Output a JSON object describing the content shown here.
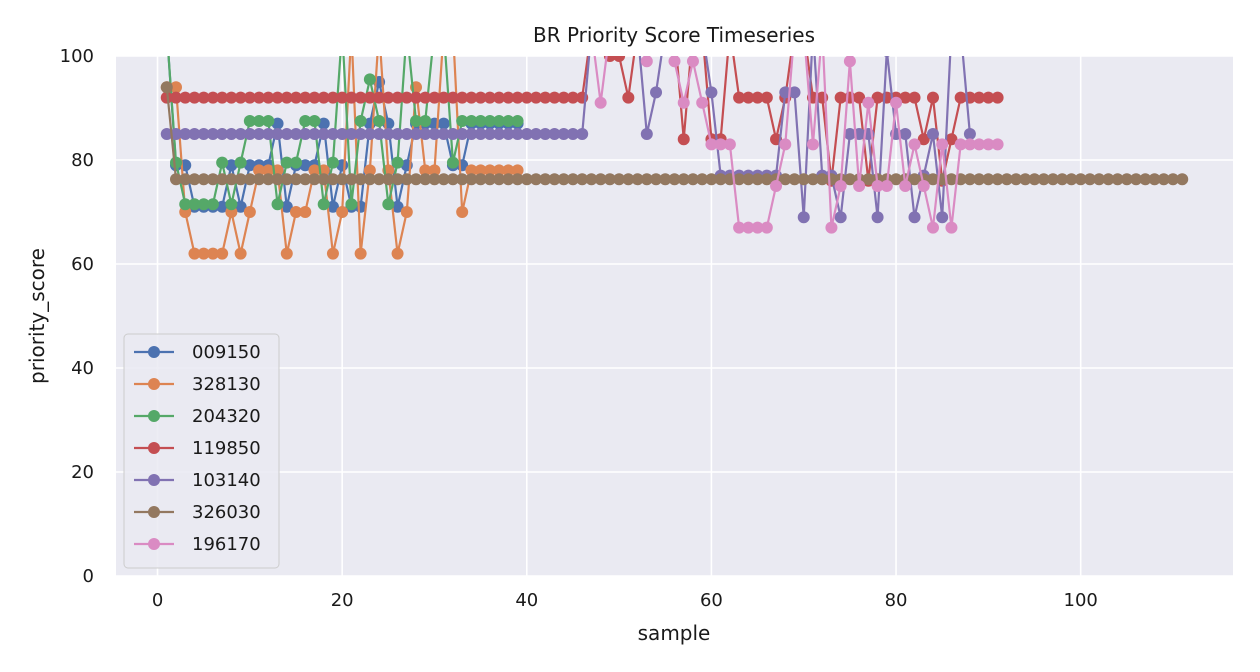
{
  "chart_data": {
    "type": "line",
    "title": "BR Priority Score Timeseries",
    "xlabel": "sample",
    "ylabel": "priority_score",
    "xlim": [
      -4.5,
      116.5
    ],
    "ylim": [
      0,
      100
    ],
    "xticks": [
      0,
      20,
      40,
      60,
      80,
      100
    ],
    "yticks": [
      0,
      20,
      40,
      60,
      80,
      100
    ],
    "grid": true,
    "legend_position": "lower-left",
    "series": [
      {
        "name": "009150",
        "color": "#4c72b0",
        "x": [
          1,
          2,
          3,
          4,
          5,
          6,
          7,
          8,
          9,
          10,
          11,
          12,
          13,
          14,
          15,
          16,
          17,
          18,
          19,
          20,
          21,
          22,
          23,
          24,
          25,
          26,
          27,
          28,
          29,
          30,
          31,
          32,
          33,
          34,
          35,
          36,
          37,
          38,
          39
        ],
        "values": [
          105,
          79,
          79,
          71,
          71,
          71,
          71,
          79,
          71,
          79,
          79,
          79,
          87,
          71,
          79,
          79,
          79,
          87,
          71,
          79,
          71,
          71,
          87,
          95,
          87,
          71,
          79,
          87,
          87,
          87,
          87,
          79,
          79,
          87,
          87,
          87,
          87,
          87,
          87
        ]
      },
      {
        "name": "328130",
        "color": "#dd8452",
        "x": [
          1,
          2,
          3,
          4,
          5,
          6,
          7,
          8,
          9,
          10,
          11,
          12,
          13,
          14,
          15,
          16,
          17,
          18,
          19,
          20,
          21,
          22,
          23,
          24,
          25,
          26,
          27,
          28,
          29,
          30,
          31,
          32,
          33,
          34,
          35,
          36,
          37,
          38,
          39
        ],
        "values": [
          94,
          94,
          70,
          62,
          62,
          62,
          62,
          70,
          62,
          70,
          78,
          78,
          78,
          62,
          70,
          70,
          78,
          78,
          62,
          70,
          105,
          62,
          78,
          105,
          78,
          62,
          70,
          94,
          78,
          78,
          105,
          105,
          70,
          78,
          78,
          78,
          78,
          78,
          78
        ]
      },
      {
        "name": "204320",
        "color": "#55a868",
        "x": [
          1,
          2,
          3,
          4,
          5,
          6,
          7,
          8,
          9,
          10,
          11,
          12,
          13,
          14,
          15,
          16,
          17,
          18,
          19,
          20,
          21,
          22,
          23,
          24,
          25,
          26,
          27,
          28,
          29,
          30,
          31,
          32,
          33,
          34,
          35,
          36,
          37,
          38,
          39
        ],
        "values": [
          105,
          79.5,
          71.5,
          71.5,
          71.5,
          71.5,
          79.5,
          71.5,
          79.5,
          87.5,
          87.5,
          87.5,
          71.5,
          79.5,
          79.5,
          87.5,
          87.5,
          71.5,
          79.5,
          105,
          71.5,
          87.5,
          95.5,
          87.5,
          71.5,
          79.5,
          105,
          87.5,
          87.5,
          105,
          105,
          79.5,
          87.5,
          87.5,
          87.5,
          87.5,
          87.5,
          87.5,
          87.5
        ]
      },
      {
        "name": "119850",
        "color": "#c44e52",
        "x": [
          1,
          2,
          3,
          4,
          5,
          6,
          7,
          8,
          9,
          10,
          11,
          12,
          13,
          14,
          15,
          16,
          17,
          18,
          19,
          20,
          21,
          22,
          23,
          24,
          25,
          26,
          27,
          28,
          29,
          30,
          31,
          32,
          33,
          34,
          35,
          36,
          37,
          38,
          39,
          40,
          41,
          42,
          43,
          44,
          45,
          46,
          47,
          48,
          49,
          50,
          51,
          52,
          53,
          54,
          55,
          56,
          57,
          58,
          59,
          60,
          61,
          62,
          63,
          64,
          65,
          66,
          67,
          68,
          69,
          70,
          71,
          72,
          73,
          74,
          75,
          76,
          77,
          78,
          79,
          80,
          81,
          82,
          83,
          84,
          85,
          86,
          87,
          88,
          89,
          90,
          91
        ],
        "values": [
          92,
          92,
          92,
          92,
          92,
          92,
          92,
          92,
          92,
          92,
          92,
          92,
          92,
          92,
          92,
          92,
          92,
          92,
          92,
          92,
          92,
          92,
          92,
          92,
          92,
          92,
          92,
          92,
          92,
          92,
          92,
          92,
          92,
          92,
          92,
          92,
          92,
          92,
          92,
          92,
          92,
          92,
          92,
          92,
          92,
          92,
          105,
          105,
          100,
          100,
          92,
          105,
          105,
          105,
          105,
          105,
          84,
          105,
          105,
          84,
          84,
          105,
          92,
          92,
          92,
          92,
          84,
          92,
          105,
          105,
          92,
          92,
          76,
          92,
          92,
          92,
          76,
          92,
          92,
          92,
          92,
          92,
          84,
          92,
          76,
          84,
          92,
          92,
          92,
          92,
          92
        ]
      },
      {
        "name": "103140",
        "color": "#8172b2",
        "x": [
          1,
          2,
          3,
          4,
          5,
          6,
          7,
          8,
          9,
          10,
          11,
          12,
          13,
          14,
          15,
          16,
          17,
          18,
          19,
          20,
          21,
          22,
          23,
          24,
          25,
          26,
          27,
          28,
          29,
          30,
          31,
          32,
          33,
          34,
          35,
          36,
          37,
          38,
          39,
          40,
          41,
          42,
          43,
          44,
          45,
          46,
          47,
          48,
          49,
          50,
          51,
          52,
          53,
          54,
          55,
          56,
          57,
          58,
          59,
          60,
          61,
          62,
          63,
          64,
          65,
          66,
          67,
          68,
          69,
          70,
          71,
          72,
          73,
          74,
          75,
          76,
          77,
          78,
          79,
          80,
          81,
          82,
          83,
          84,
          85,
          86,
          87,
          88
        ],
        "values": [
          85,
          85,
          85,
          85,
          85,
          85,
          85,
          85,
          85,
          85,
          85,
          85,
          85,
          85,
          85,
          85,
          85,
          85,
          85,
          85,
          85,
          85,
          85,
          85,
          85,
          85,
          85,
          85,
          85,
          85,
          85,
          85,
          85,
          85,
          85,
          85,
          85,
          85,
          85,
          85,
          85,
          85,
          85,
          85,
          85,
          85,
          105,
          105,
          105,
          105,
          105,
          105,
          85,
          93,
          105,
          105,
          105,
          105,
          105,
          93,
          77,
          77,
          77,
          77,
          77,
          77,
          77,
          93,
          93,
          69,
          105,
          77,
          77,
          69,
          85,
          85,
          85,
          69,
          101,
          85,
          85,
          69,
          77,
          85,
          69,
          105,
          105,
          85
        ]
      },
      {
        "name": "326030",
        "color": "#937860",
        "x": [
          1,
          2,
          3,
          4,
          5,
          6,
          7,
          8,
          9,
          10,
          11,
          12,
          13,
          14,
          15,
          16,
          17,
          18,
          19,
          20,
          21,
          22,
          23,
          24,
          25,
          26,
          27,
          28,
          29,
          30,
          31,
          32,
          33,
          34,
          35,
          36,
          37,
          38,
          39,
          40,
          41,
          42,
          43,
          44,
          45,
          46,
          47,
          48,
          49,
          50,
          51,
          52,
          53,
          54,
          55,
          56,
          57,
          58,
          59,
          60,
          61,
          62,
          63,
          64,
          65,
          66,
          67,
          68,
          69,
          70,
          71,
          72,
          73,
          74,
          75,
          76,
          77,
          78,
          79,
          80,
          81,
          82,
          83,
          84,
          85,
          86,
          87,
          88,
          89,
          90,
          91,
          92,
          93,
          94,
          95,
          96,
          97,
          98,
          99,
          100,
          101,
          102,
          103,
          104,
          105,
          106,
          107,
          108,
          109,
          110,
          111
        ],
        "values": [
          94,
          76.3,
          76.3,
          76.3,
          76.3,
          76.3,
          76.3,
          76.3,
          76.3,
          76.3,
          76.3,
          76.3,
          76.3,
          76.3,
          76.3,
          76.3,
          76.3,
          76.3,
          76.3,
          76.3,
          76.3,
          76.3,
          76.3,
          76.3,
          76.3,
          76.3,
          76.3,
          76.3,
          76.3,
          76.3,
          76.3,
          76.3,
          76.3,
          76.3,
          76.3,
          76.3,
          76.3,
          76.3,
          76.3,
          76.3,
          76.3,
          76.3,
          76.3,
          76.3,
          76.3,
          76.3,
          76.3,
          76.3,
          76.3,
          76.3,
          76.3,
          76.3,
          76.3,
          76.3,
          76.3,
          76.3,
          76.3,
          76.3,
          76.3,
          76.3,
          76.3,
          76.3,
          76.3,
          76.3,
          76.3,
          76.3,
          76.3,
          76.3,
          76.3,
          76.3,
          76.3,
          76.3,
          76.3,
          76.3,
          76.3,
          76.3,
          76.3,
          76.3,
          76.3,
          76.3,
          76.3,
          76.3,
          76.3,
          76.3,
          76.3,
          76.3,
          76.3,
          76.3,
          76.3,
          76.3,
          76.3,
          76.3,
          76.3,
          76.3,
          76.3,
          76.3,
          76.3,
          76.3,
          76.3,
          76.3,
          76.3,
          76.3,
          76.3,
          76.3,
          76.3,
          76.3,
          76.3,
          76.3,
          76.3,
          76.3,
          76.3
        ]
      },
      {
        "name": "196170",
        "color": "#da8bc3",
        "x": [
          47,
          48,
          49,
          50,
          51,
          52,
          53,
          54,
          55,
          56,
          57,
          58,
          59,
          60,
          61,
          62,
          63,
          64,
          65,
          66,
          67,
          68,
          69,
          70,
          71,
          72,
          73,
          74,
          75,
          76,
          77,
          78,
          79,
          80,
          81,
          82,
          83,
          84,
          85,
          86,
          87,
          88,
          89,
          90,
          91
        ],
        "values": [
          105,
          91,
          105,
          105,
          105,
          105,
          99,
          105,
          105,
          99,
          91,
          99,
          91,
          83,
          83,
          83,
          67,
          67,
          67,
          67,
          75,
          83,
          105,
          105,
          83,
          105,
          67,
          75,
          99,
          75,
          91,
          75,
          75,
          91,
          75,
          83,
          75,
          67,
          83,
          67,
          83,
          83,
          83,
          83,
          83
        ]
      }
    ]
  }
}
